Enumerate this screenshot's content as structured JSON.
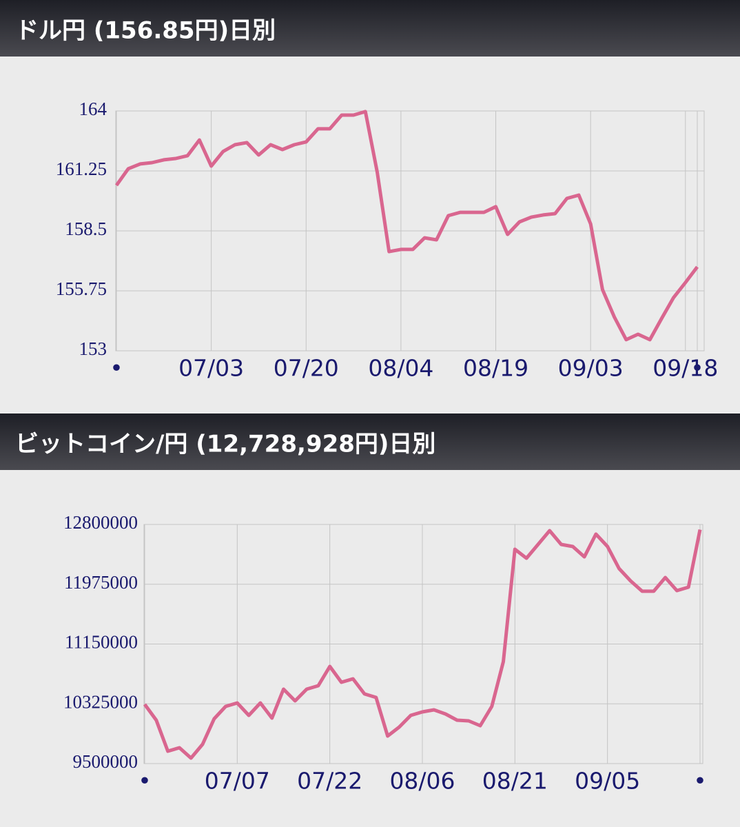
{
  "chart_data": [
    {
      "type": "line",
      "title": "ドル円 (156.85円)日別",
      "categories": [
        "•",
        null,
        null,
        null,
        null,
        null,
        null,
        null,
        "07/03",
        null,
        null,
        null,
        null,
        null,
        null,
        null,
        "07/20",
        null,
        null,
        null,
        null,
        null,
        null,
        null,
        "08/04",
        null,
        null,
        null,
        null,
        null,
        null,
        null,
        "08/19",
        null,
        null,
        null,
        null,
        null,
        null,
        null,
        "09/03",
        null,
        null,
        null,
        null,
        null,
        null,
        null,
        "09/18",
        "•"
      ],
      "values": [
        160.59,
        161.35,
        161.57,
        161.63,
        161.76,
        161.82,
        161.95,
        162.67,
        161.47,
        162.14,
        162.45,
        162.55,
        161.98,
        162.45,
        162.23,
        162.45,
        162.58,
        163.18,
        163.18,
        163.81,
        163.81,
        163.97,
        161.19,
        157.55,
        157.65,
        157.65,
        158.18,
        158.09,
        159.2,
        159.35,
        159.35,
        159.35,
        159.61,
        158.34,
        158.91,
        159.13,
        159.23,
        159.29,
        159.99,
        160.14,
        158.82,
        155.81,
        154.55,
        153.51,
        153.76,
        153.51,
        154.49,
        155.44,
        156.13,
        156.85
      ],
      "color": "#d9668f",
      "ylim": [
        153,
        164
      ],
      "yticks": [
        153,
        155.75,
        158.5,
        161.25,
        164
      ],
      "grid": true
    },
    {
      "type": "line",
      "title": "ビットコイン/円 (12,728,928円)日別",
      "categories": [
        "•",
        null,
        null,
        null,
        null,
        null,
        null,
        null,
        "07/07",
        null,
        null,
        null,
        null,
        null,
        null,
        null,
        "07/22",
        null,
        null,
        null,
        null,
        null,
        null,
        null,
        "08/06",
        null,
        null,
        null,
        null,
        null,
        null,
        null,
        "08/21",
        null,
        null,
        null,
        null,
        null,
        null,
        null,
        "09/05",
        null,
        null,
        null,
        null,
        null,
        null,
        null,
        "•"
      ],
      "values": [
        10318000,
        10099000,
        9671000,
        9719000,
        9576000,
        9766000,
        10118000,
        10289000,
        10337000,
        10166000,
        10337000,
        10128000,
        10527000,
        10365000,
        10527000,
        10575000,
        10841000,
        10622000,
        10670000,
        10461000,
        10413000,
        9880000,
        10004000,
        10166000,
        10213000,
        10242000,
        10185000,
        10099000,
        10090000,
        10023000,
        10289000,
        10907000,
        12458000,
        12334000,
        12524000,
        12714000,
        12524000,
        12496000,
        12353000,
        12667000,
        12496000,
        12191000,
        12020000,
        11878000,
        11878000,
        12068000,
        11887000,
        11935000,
        12728928
      ],
      "color": "#d9668f",
      "ylim": [
        9500000,
        12800000
      ],
      "yticks": [
        9500000,
        10325000,
        11150000,
        11975000,
        12800000
      ],
      "grid": true
    }
  ]
}
